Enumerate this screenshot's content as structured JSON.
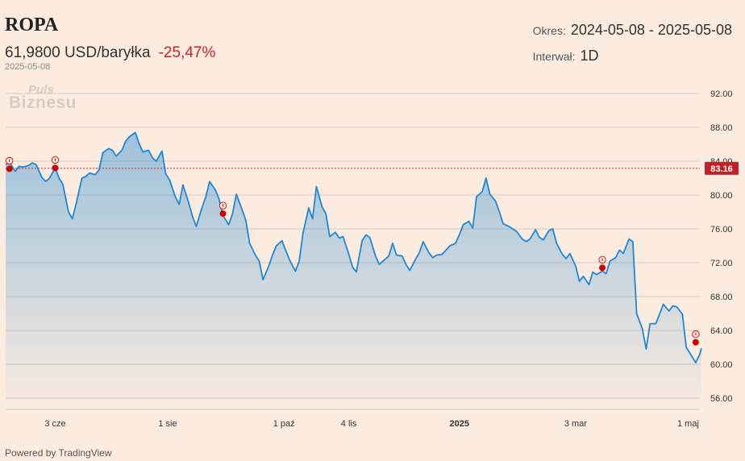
{
  "header": {
    "title": "ROPA",
    "price": "61,9800 USD/baryłka",
    "change": "-25,47%",
    "date": "2025-05-08"
  },
  "info": {
    "period_label": "Okres:",
    "period_value": "2024-05-08 - 2025-05-08",
    "interval_label": "Interwał:",
    "interval_value": "1D"
  },
  "logo": {
    "line1": "Puls",
    "line2": "Biznesu"
  },
  "footer": "Powered by TradingView",
  "colors": {
    "line": "#1e88d6",
    "ref_line": "#c0202a",
    "marker": "#cc0000"
  },
  "chart_data": {
    "type": "area",
    "x_range": [
      "2024-05-08",
      "2025-05-08"
    ],
    "ylim": [
      55,
      93
    ],
    "yticks": [
      "92.00",
      "88.00",
      "84.00",
      "80.00",
      "76.00",
      "72.00",
      "68.00",
      "64.00",
      "60.00",
      "56.00"
    ],
    "xticks": [
      {
        "label": "3 cze",
        "date": "2024-06-03",
        "bold": false
      },
      {
        "label": "1 sie",
        "date": "2024-08-01",
        "bold": false
      },
      {
        "label": "1 paź",
        "date": "2024-10-01",
        "bold": false
      },
      {
        "label": "4 lis",
        "date": "2024-11-04",
        "bold": false
      },
      {
        "label": "2025",
        "date": "2025-01-01",
        "bold": true
      },
      {
        "label": "3 mar",
        "date": "2025-03-03",
        "bold": false
      },
      {
        "label": "1 maj",
        "date": "2025-05-01",
        "bold": false
      }
    ],
    "reference_line": {
      "value": 83.16,
      "label": "83.16"
    },
    "grid": true,
    "series": [
      {
        "points": [
          [
            "2024-05-08",
            83.6
          ],
          [
            "2024-05-10",
            83.9
          ],
          [
            "2024-05-13",
            82.8
          ],
          [
            "2024-05-15",
            83.4
          ],
          [
            "2024-05-17",
            83.3
          ],
          [
            "2024-05-20",
            83.5
          ],
          [
            "2024-05-22",
            83.8
          ],
          [
            "2024-05-24",
            83.6
          ],
          [
            "2024-05-27",
            82.1
          ],
          [
            "2024-05-29",
            81.6
          ],
          [
            "2024-05-31",
            82.0
          ],
          [
            "2024-06-03",
            83.2
          ],
          [
            "2024-06-05",
            82.0
          ],
          [
            "2024-06-07",
            81.3
          ],
          [
            "2024-06-10",
            78.0
          ],
          [
            "2024-06-12",
            77.2
          ],
          [
            "2024-06-14",
            79.0
          ],
          [
            "2024-06-17",
            82.0
          ],
          [
            "2024-06-19",
            82.2
          ],
          [
            "2024-06-21",
            82.6
          ],
          [
            "2024-06-24",
            82.4
          ],
          [
            "2024-06-26",
            83.0
          ],
          [
            "2024-06-28",
            85.0
          ],
          [
            "2024-07-01",
            85.5
          ],
          [
            "2024-07-03",
            85.3
          ],
          [
            "2024-07-05",
            84.6
          ],
          [
            "2024-07-08",
            85.3
          ],
          [
            "2024-07-10",
            86.4
          ],
          [
            "2024-07-12",
            86.9
          ],
          [
            "2024-07-15",
            87.4
          ],
          [
            "2024-07-17",
            86.1
          ],
          [
            "2024-07-19",
            85.1
          ],
          [
            "2024-07-22",
            85.3
          ],
          [
            "2024-07-24",
            84.4
          ],
          [
            "2024-07-26",
            84.0
          ],
          [
            "2024-07-29",
            85.2
          ],
          [
            "2024-07-31",
            82.5
          ],
          [
            "2024-08-02",
            81.8
          ],
          [
            "2024-08-05",
            79.8
          ],
          [
            "2024-08-07",
            78.9
          ],
          [
            "2024-08-09",
            81.2
          ],
          [
            "2024-08-12",
            79.1
          ],
          [
            "2024-08-14",
            77.5
          ],
          [
            "2024-08-16",
            76.3
          ],
          [
            "2024-08-19",
            78.5
          ],
          [
            "2024-08-21",
            79.8
          ],
          [
            "2024-08-23",
            81.6
          ],
          [
            "2024-08-26",
            80.6
          ],
          [
            "2024-08-28",
            79.5
          ],
          [
            "2024-08-30",
            77.6
          ],
          [
            "2024-09-02",
            76.5
          ],
          [
            "2024-09-04",
            77.8
          ],
          [
            "2024-09-06",
            80.1
          ],
          [
            "2024-09-09",
            78.3
          ],
          [
            "2024-09-11",
            77.0
          ],
          [
            "2024-09-13",
            74.3
          ],
          [
            "2024-09-16",
            72.9
          ],
          [
            "2024-09-18",
            72.2
          ],
          [
            "2024-09-20",
            70.0
          ],
          [
            "2024-09-23",
            71.6
          ],
          [
            "2024-09-25",
            72.9
          ],
          [
            "2024-09-27",
            74.0
          ],
          [
            "2024-09-30",
            74.6
          ],
          [
            "2024-10-02",
            73.4
          ],
          [
            "2024-10-04",
            72.3
          ],
          [
            "2024-10-07",
            71.0
          ],
          [
            "2024-10-09",
            72.2
          ],
          [
            "2024-10-11",
            75.5
          ],
          [
            "2024-10-14",
            78.5
          ],
          [
            "2024-10-16",
            77.2
          ],
          [
            "2024-10-18",
            81.0
          ],
          [
            "2024-10-21",
            78.6
          ],
          [
            "2024-10-23",
            77.8
          ],
          [
            "2024-10-25",
            75.1
          ],
          [
            "2024-10-28",
            75.6
          ],
          [
            "2024-10-30",
            74.9
          ],
          [
            "2024-11-01",
            75.1
          ],
          [
            "2024-11-04",
            73.0
          ],
          [
            "2024-11-06",
            71.5
          ],
          [
            "2024-11-08",
            70.9
          ],
          [
            "2024-11-11",
            74.6
          ],
          [
            "2024-11-13",
            75.3
          ],
          [
            "2024-11-15",
            75.0
          ],
          [
            "2024-11-18",
            72.8
          ],
          [
            "2024-11-20",
            71.8
          ],
          [
            "2024-11-22",
            72.2
          ],
          [
            "2024-11-25",
            72.8
          ],
          [
            "2024-11-27",
            74.3
          ],
          [
            "2024-11-29",
            72.9
          ],
          [
            "2024-12-02",
            72.8
          ],
          [
            "2024-12-04",
            71.8
          ],
          [
            "2024-12-06",
            71.1
          ],
          [
            "2024-12-09",
            72.4
          ],
          [
            "2024-12-11",
            73.2
          ],
          [
            "2024-12-13",
            74.5
          ],
          [
            "2024-12-16",
            73.2
          ],
          [
            "2024-12-18",
            72.6
          ],
          [
            "2024-12-20",
            72.9
          ],
          [
            "2024-12-23",
            73.0
          ],
          [
            "2024-12-25",
            73.5
          ],
          [
            "2024-12-27",
            74.0
          ],
          [
            "2024-12-30",
            74.3
          ],
          [
            "2025-01-01",
            75.3
          ],
          [
            "2025-01-03",
            76.5
          ],
          [
            "2025-01-06",
            76.9
          ],
          [
            "2025-01-08",
            76.1
          ],
          [
            "2025-01-10",
            79.8
          ],
          [
            "2025-01-13",
            80.4
          ],
          [
            "2025-01-15",
            82.0
          ],
          [
            "2025-01-17",
            80.1
          ],
          [
            "2025-01-20",
            79.3
          ],
          [
            "2025-01-22",
            78.0
          ],
          [
            "2025-01-24",
            76.6
          ],
          [
            "2025-01-27",
            76.3
          ],
          [
            "2025-01-29",
            76.0
          ],
          [
            "2025-01-31",
            75.7
          ],
          [
            "2025-02-03",
            74.8
          ],
          [
            "2025-02-05",
            74.5
          ],
          [
            "2025-02-07",
            74.8
          ],
          [
            "2025-02-10",
            75.9
          ],
          [
            "2025-02-12",
            75.0
          ],
          [
            "2025-02-14",
            74.7
          ],
          [
            "2025-02-17",
            75.8
          ],
          [
            "2025-02-19",
            76.0
          ],
          [
            "2025-02-21",
            74.3
          ],
          [
            "2025-02-24",
            73.0
          ],
          [
            "2025-02-26",
            72.5
          ],
          [
            "2025-02-28",
            73.1
          ],
          [
            "2025-03-03",
            71.6
          ],
          [
            "2025-03-05",
            69.8
          ],
          [
            "2025-03-07",
            70.4
          ],
          [
            "2025-03-10",
            69.4
          ],
          [
            "2025-03-12",
            70.9
          ],
          [
            "2025-03-14",
            70.6
          ],
          [
            "2025-03-17",
            71.0
          ],
          [
            "2025-03-19",
            70.7
          ],
          [
            "2025-03-21",
            72.2
          ],
          [
            "2025-03-24",
            72.6
          ],
          [
            "2025-03-26",
            73.5
          ],
          [
            "2025-03-28",
            73.1
          ],
          [
            "2025-03-31",
            74.8
          ],
          [
            "2025-04-02",
            74.5
          ],
          [
            "2025-04-04",
            66.0
          ],
          [
            "2025-04-07",
            64.2
          ],
          [
            "2025-04-09",
            61.8
          ],
          [
            "2025-04-11",
            64.8
          ],
          [
            "2025-04-14",
            64.8
          ],
          [
            "2025-04-16",
            65.9
          ],
          [
            "2025-04-18",
            67.1
          ],
          [
            "2025-04-21",
            66.3
          ],
          [
            "2025-04-23",
            66.9
          ],
          [
            "2025-04-25",
            66.8
          ],
          [
            "2025-04-28",
            65.9
          ],
          [
            "2025-04-30",
            62.0
          ],
          [
            "2025-05-02",
            61.3
          ],
          [
            "2025-05-05",
            60.2
          ],
          [
            "2025-05-07",
            61.1
          ],
          [
            "2025-05-08",
            61.9
          ]
        ]
      }
    ],
    "event_markers": [
      {
        "date": "2024-05-10",
        "value": 83.1
      },
      {
        "date": "2024-06-03",
        "value": 83.2
      },
      {
        "date": "2024-08-30",
        "value": 77.8
      },
      {
        "date": "2025-03-17",
        "value": 71.4
      },
      {
        "date": "2025-05-05",
        "value": 62.6
      }
    ]
  }
}
